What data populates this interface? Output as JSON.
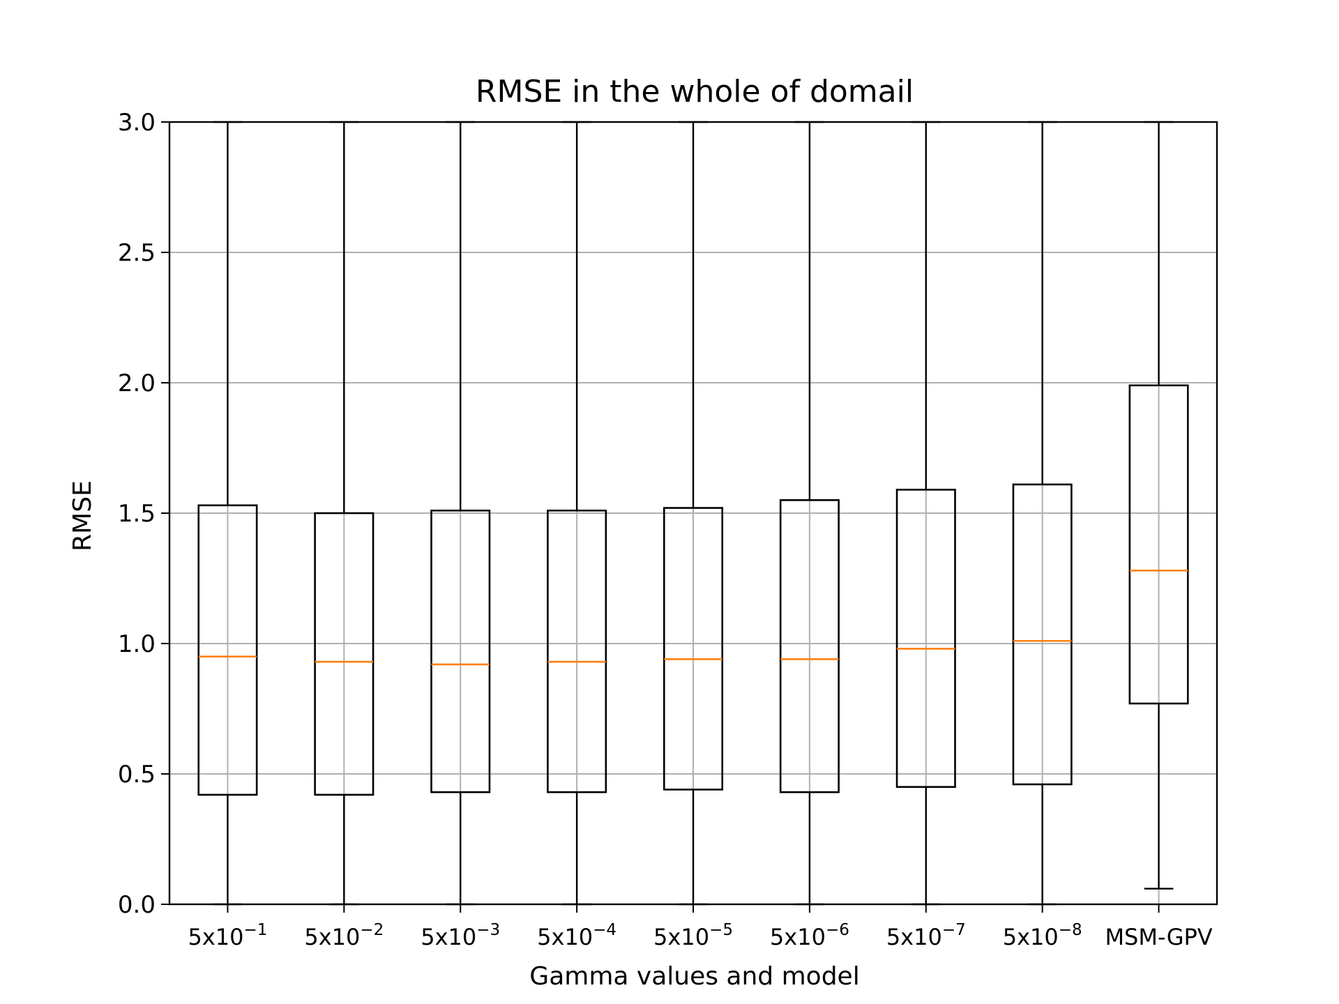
{
  "chart_data": {
    "type": "box",
    "title": "RMSE in the whole of domail",
    "xlabel": "Gamma values and model",
    "ylabel": "RMSE",
    "ylim": [
      0,
      3.0
    ],
    "yticks": [
      "0.0",
      "0.5",
      "1.0",
      "1.5",
      "2.0",
      "2.5",
      "3.0"
    ],
    "grid": true,
    "colors": {
      "box": "#000000",
      "median": "#ff7f0e",
      "grid": "#b0b0b0"
    },
    "categories": [
      {
        "base": "5x10",
        "exp": "−1"
      },
      {
        "base": "5x10",
        "exp": "−2"
      },
      {
        "base": "5x10",
        "exp": "−3"
      },
      {
        "base": "5x10",
        "exp": "−4"
      },
      {
        "base": "5x10",
        "exp": "−5"
      },
      {
        "base": "5x10",
        "exp": "−6"
      },
      {
        "base": "5x10",
        "exp": "−7"
      },
      {
        "base": "5x10",
        "exp": "−8"
      },
      {
        "base": "MSM-GPV",
        "exp": ""
      }
    ],
    "boxes": [
      {
        "whisker_low": 0.0,
        "q1": 0.42,
        "median": 0.95,
        "q3": 1.53,
        "whisker_high": 3.0
      },
      {
        "whisker_low": 0.0,
        "q1": 0.42,
        "median": 0.93,
        "q3": 1.5,
        "whisker_high": 3.0
      },
      {
        "whisker_low": 0.0,
        "q1": 0.43,
        "median": 0.92,
        "q3": 1.51,
        "whisker_high": 3.0
      },
      {
        "whisker_low": 0.0,
        "q1": 0.43,
        "median": 0.93,
        "q3": 1.51,
        "whisker_high": 3.0
      },
      {
        "whisker_low": 0.0,
        "q1": 0.44,
        "median": 0.94,
        "q3": 1.52,
        "whisker_high": 3.0
      },
      {
        "whisker_low": 0.0,
        "q1": 0.43,
        "median": 0.94,
        "q3": 1.55,
        "whisker_high": 3.0
      },
      {
        "whisker_low": 0.0,
        "q1": 0.45,
        "median": 0.98,
        "q3": 1.59,
        "whisker_high": 3.0
      },
      {
        "whisker_low": 0.0,
        "q1": 0.46,
        "median": 1.01,
        "q3": 1.61,
        "whisker_high": 3.0
      },
      {
        "whisker_low": 0.06,
        "q1": 0.77,
        "median": 1.28,
        "q3": 1.99,
        "whisker_high": 3.0
      }
    ]
  }
}
